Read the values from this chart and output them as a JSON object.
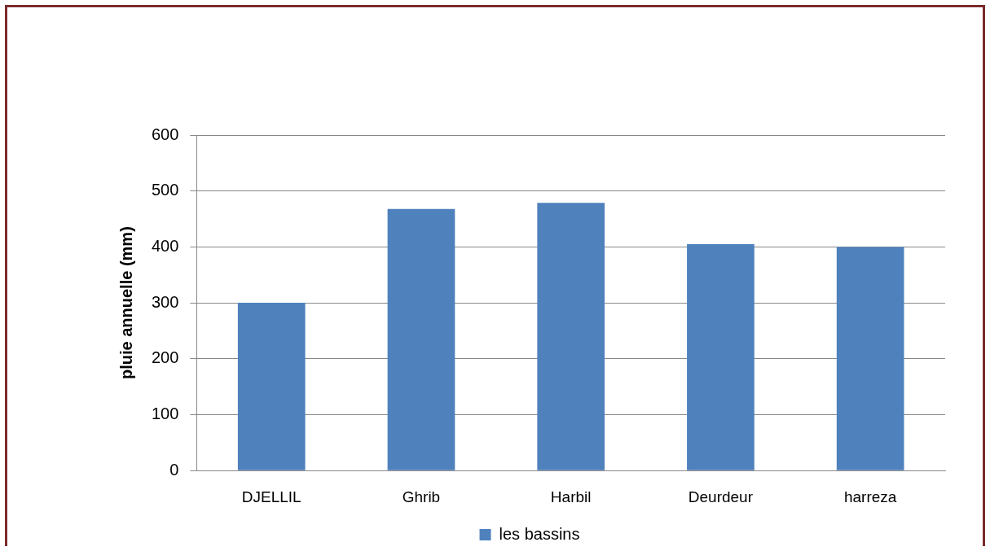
{
  "chart_data": {
    "type": "bar",
    "ylabel": "pluie annuelle (mm)",
    "categories": [
      "DJELLIL",
      "Ghrib",
      "Harbil",
      "Deurdeur",
      "harreza"
    ],
    "series": [
      {
        "name": "les bassins",
        "color": "#4f81bd",
        "values": [
          300,
          468,
          479,
          405,
          400
        ]
      }
    ],
    "ylim": [
      0,
      600
    ],
    "yticks": [
      0,
      100,
      200,
      300,
      400,
      500,
      600
    ],
    "grid": "y",
    "legend": "bottom"
  }
}
